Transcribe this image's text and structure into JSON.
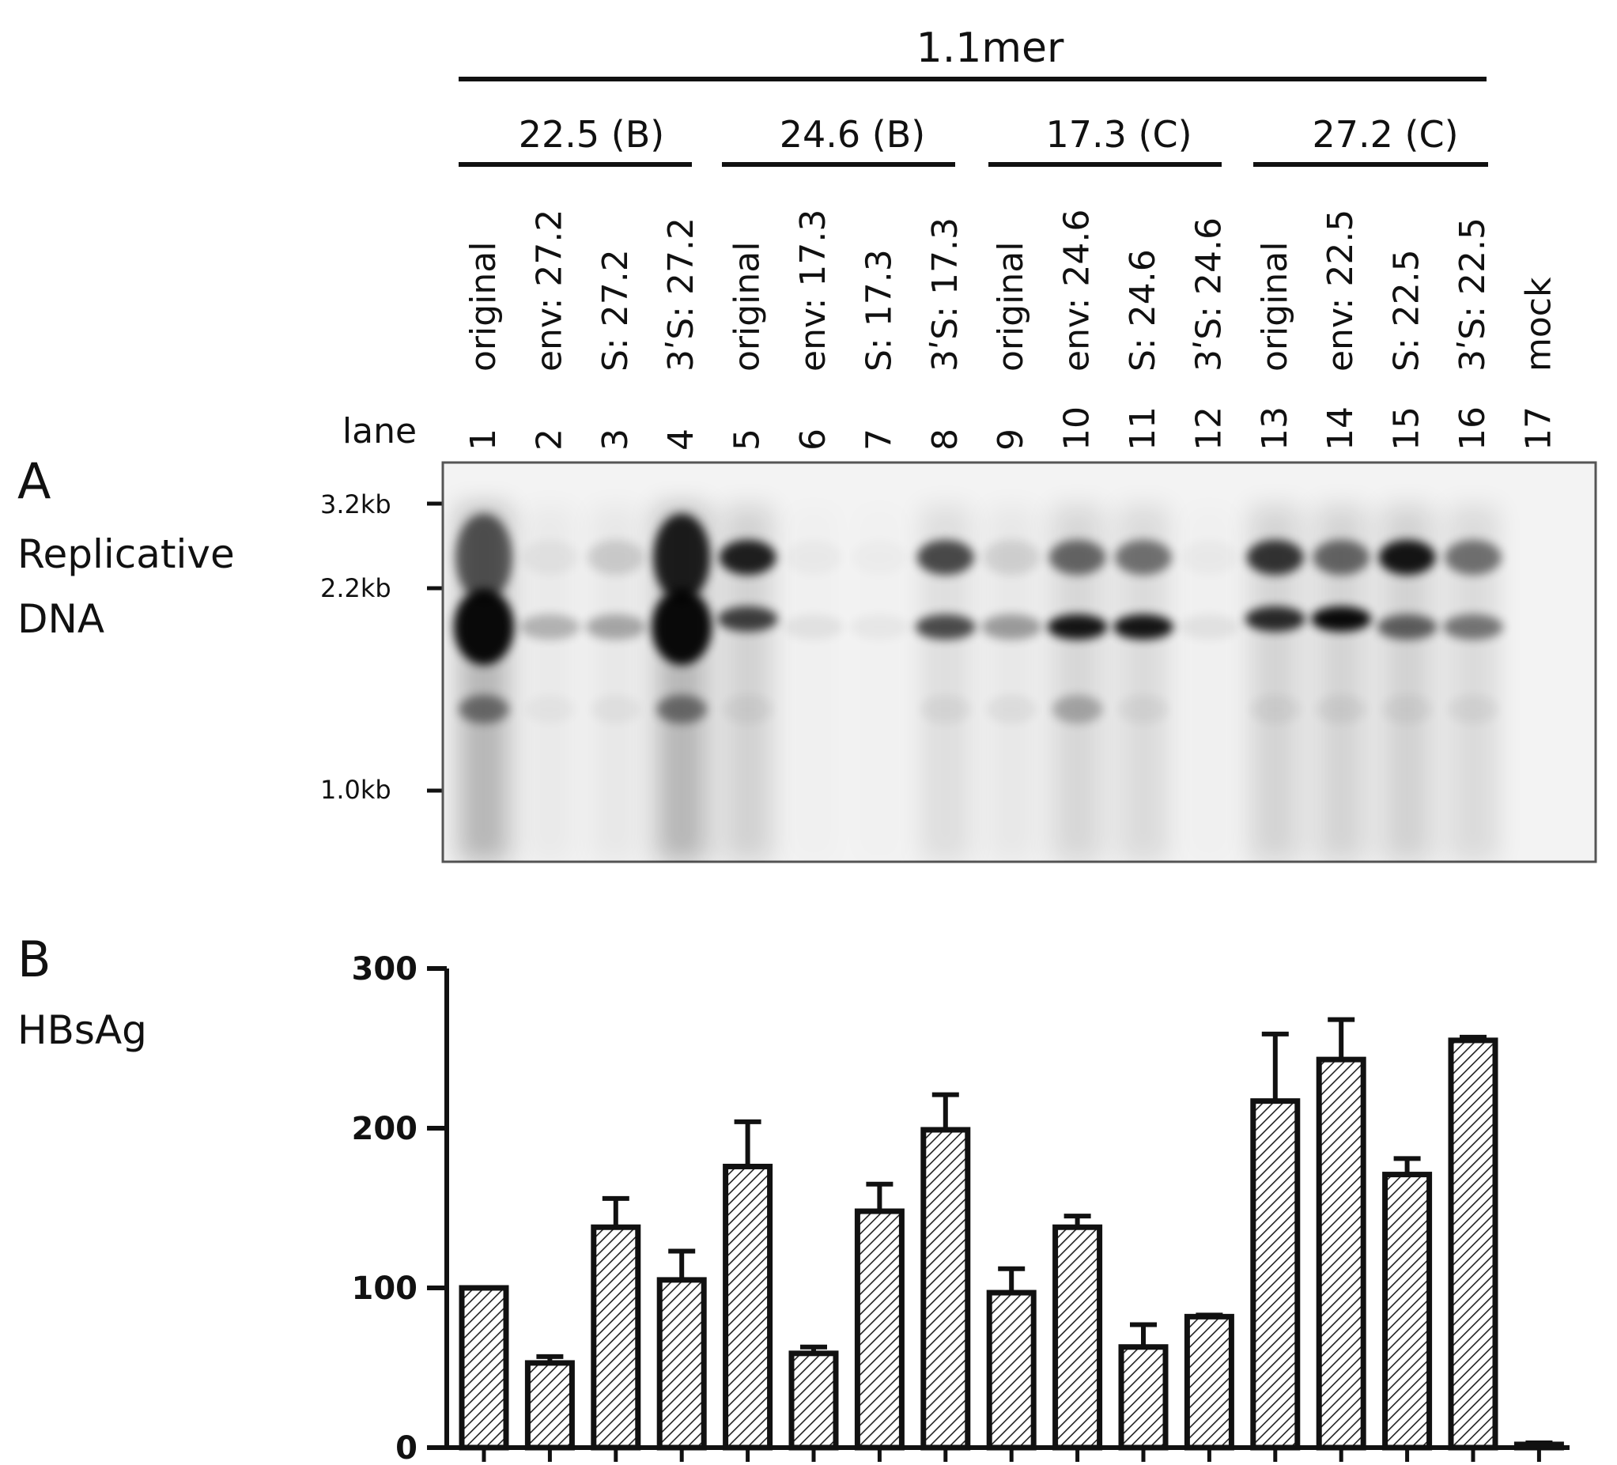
{
  "figure": {
    "top_group_label": "1.1mer",
    "groups": [
      "22.5 (B)",
      "24.6 (B)",
      "17.3 (C)",
      "27.2 (C)"
    ],
    "lane_header": "lane",
    "lane_labels": [
      "original",
      "env: 27.2",
      "S: 27.2",
      "3ʹS: 27.2",
      "original",
      "env: 17.3",
      "S: 17.3",
      "3ʹS: 17.3",
      "original",
      "env: 24.6",
      "S: 24.6",
      "3ʹS: 24.6",
      "original",
      "env: 22.5",
      "S: 22.5",
      "3ʹS: 22.5",
      "mock"
    ],
    "lane_numbers": [
      "1",
      "2",
      "3",
      "4",
      "5",
      "6",
      "7",
      "8",
      "9",
      "10",
      "11",
      "12",
      "13",
      "14",
      "15",
      "16",
      "17"
    ]
  },
  "panel_a": {
    "letter": "A",
    "title_line1": "Replicative",
    "title_line2": "DNA",
    "markers": [
      "3.2kb",
      "2.2kb",
      "1.0kb"
    ]
  },
  "panel_b": {
    "letter": "B",
    "title": "HBsAg"
  },
  "chart_data": {
    "type": "bar",
    "categories": [
      "1",
      "2",
      "3",
      "4",
      "5",
      "6",
      "7",
      "8",
      "9",
      "10",
      "11",
      "12",
      "13",
      "14",
      "15",
      "16",
      "17"
    ],
    "values": [
      100,
      53,
      138,
      105,
      176,
      59,
      148,
      199,
      97,
      138,
      63,
      82,
      217,
      243,
      171,
      255,
      2
    ],
    "errors": [
      0,
      4,
      18,
      18,
      28,
      4,
      17,
      22,
      15,
      7,
      14,
      1,
      42,
      25,
      10,
      2,
      1
    ],
    "ylim": [
      0,
      300
    ],
    "yticks": [
      0,
      100,
      200,
      300
    ],
    "title": "",
    "xlabel": "",
    "ylabel": ""
  }
}
